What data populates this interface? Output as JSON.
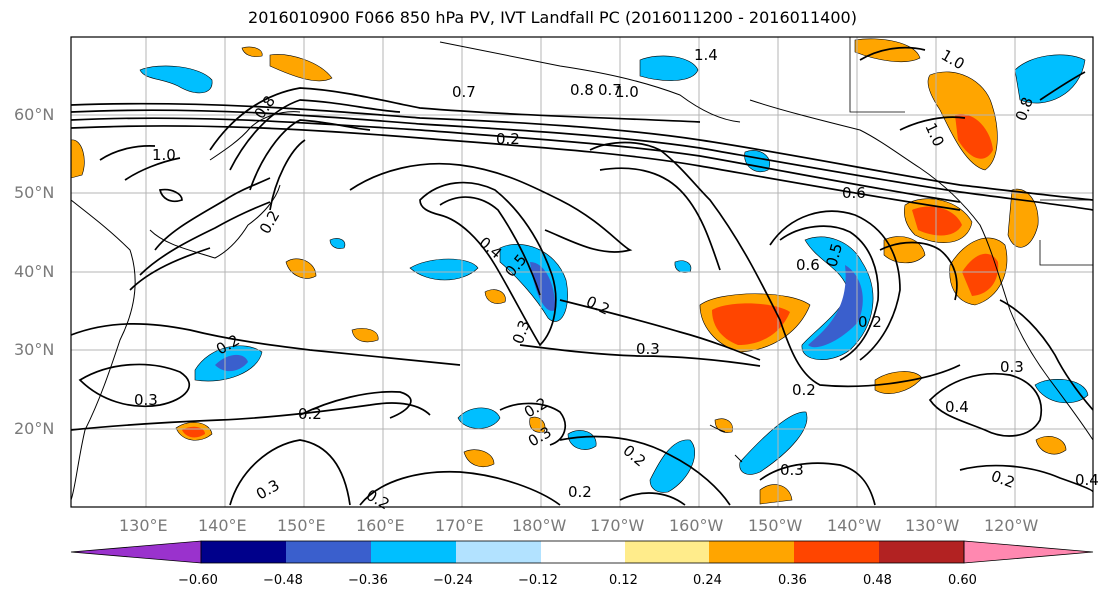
{
  "title": "2016010900 F066 850 hPa PV, IVT Landfall PC (2016011200 - 2016011400)",
  "lat_labels": [
    "60°N",
    "50°N",
    "40°N",
    "30°N",
    "20°N"
  ],
  "lon_labels": [
    "130°E",
    "140°E",
    "150°E",
    "160°E",
    "170°E",
    "180°W",
    "170°W",
    "160°W",
    "150°W",
    "140°W",
    "130°W",
    "120°W"
  ],
  "colorbar": {
    "labels": [
      "−0.60",
      "−0.48",
      "−0.36",
      "−0.24",
      "−0.12",
      "0.12",
      "0.24",
      "0.36",
      "0.48",
      "0.60"
    ],
    "colors": [
      "#9a32cd",
      "#00008b",
      "#3a5fcd",
      "#00bfff",
      "#b2e2ff",
      "#ffffff",
      "#ffec8b",
      "#ffa500",
      "#ff4500",
      "#b22222",
      "#ff88b0"
    ]
  },
  "contour_labels": [
    "0.7",
    "1.0",
    "0.8",
    "0.7",
    "1.0",
    "0.2",
    "0.8",
    "1.0",
    "0.4",
    "0.5",
    "0.6",
    "0.5",
    "0.2",
    "0.6",
    "0.2",
    "0.3",
    "0.3",
    "0.2",
    "0.3",
    "0.2",
    "0.2",
    "0.3",
    "0.4",
    "0.2",
    "0.2",
    "0.3",
    "0.2",
    "0.2",
    "0.3",
    "0.2",
    "0.3",
    "0.4",
    "0.2",
    "0.8",
    "1.0",
    "1.4"
  ]
}
